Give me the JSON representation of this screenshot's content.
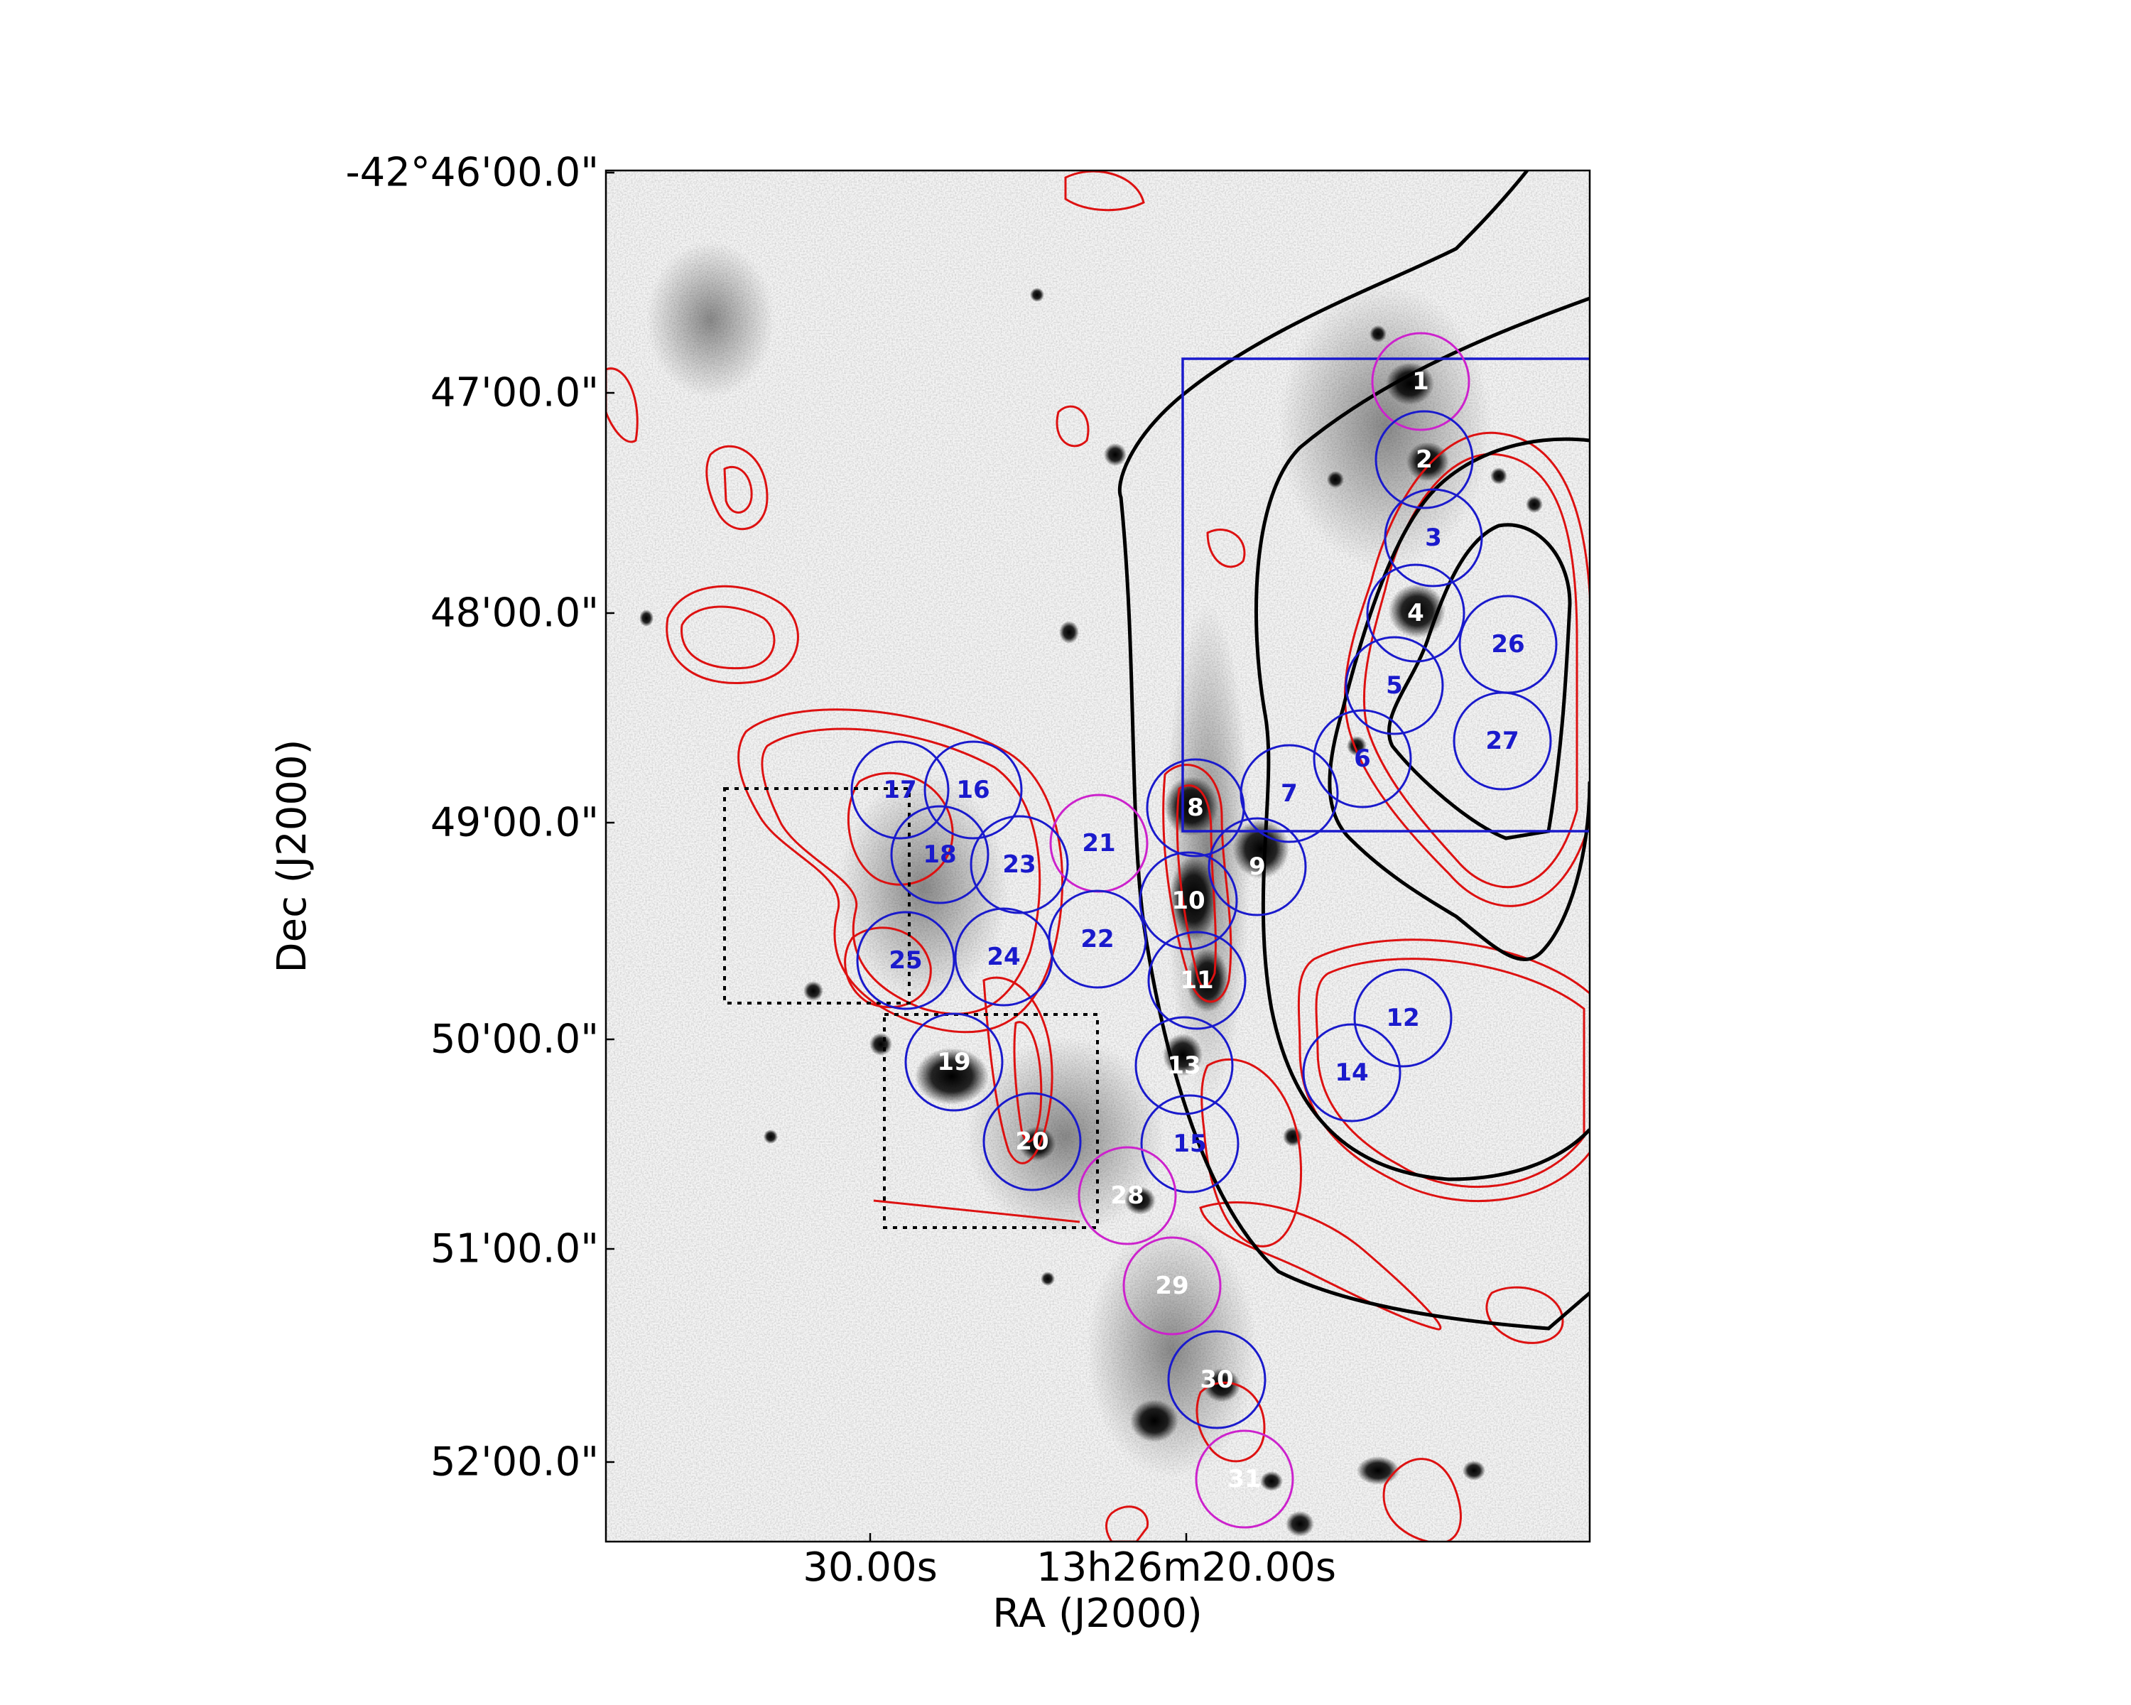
{
  "axes": {
    "xlabel": "RA (J2000)",
    "ylabel": "Dec (J2000)",
    "xticks": [
      "30.00s",
      "13h26m20.00s"
    ],
    "yticks": [
      "-42°46'00.0\"",
      "47'00.0\"",
      "48'00.0\"",
      "49'00.0\"",
      "50'00.0\"",
      "51'00.0\"",
      "52'00.0\""
    ]
  },
  "colors": {
    "blue_region": "#1a1acc",
    "magenta_region": "#cc22cc",
    "red_contour": "#dd1111",
    "black_contour": "#000000",
    "label_on_dark": "#ffffff"
  },
  "regions": [
    {
      "id": "1",
      "color": "magenta",
      "label_color": "white"
    },
    {
      "id": "2",
      "color": "blue",
      "label_color": "white"
    },
    {
      "id": "3",
      "color": "blue",
      "label_color": "blue"
    },
    {
      "id": "4",
      "color": "blue",
      "label_color": "white"
    },
    {
      "id": "5",
      "color": "blue",
      "label_color": "blue"
    },
    {
      "id": "6",
      "color": "blue",
      "label_color": "blue"
    },
    {
      "id": "7",
      "color": "blue",
      "label_color": "blue"
    },
    {
      "id": "8",
      "color": "blue",
      "label_color": "white"
    },
    {
      "id": "9",
      "color": "blue",
      "label_color": "white"
    },
    {
      "id": "10",
      "color": "blue",
      "label_color": "white"
    },
    {
      "id": "11",
      "color": "blue",
      "label_color": "white"
    },
    {
      "id": "12",
      "color": "blue",
      "label_color": "blue"
    },
    {
      "id": "13",
      "color": "blue",
      "label_color": "white"
    },
    {
      "id": "14",
      "color": "blue",
      "label_color": "blue"
    },
    {
      "id": "15",
      "color": "blue",
      "label_color": "blue"
    },
    {
      "id": "16",
      "color": "blue",
      "label_color": "blue"
    },
    {
      "id": "17",
      "color": "blue",
      "label_color": "blue"
    },
    {
      "id": "18",
      "color": "blue",
      "label_color": "blue"
    },
    {
      "id": "19",
      "color": "blue",
      "label_color": "white"
    },
    {
      "id": "20",
      "color": "blue",
      "label_color": "white"
    },
    {
      "id": "21",
      "color": "magenta",
      "label_color": "blue"
    },
    {
      "id": "22",
      "color": "blue",
      "label_color": "blue"
    },
    {
      "id": "23",
      "color": "blue",
      "label_color": "blue"
    },
    {
      "id": "24",
      "color": "blue",
      "label_color": "blue"
    },
    {
      "id": "25",
      "color": "blue",
      "label_color": "blue"
    },
    {
      "id": "26",
      "color": "blue",
      "label_color": "blue"
    },
    {
      "id": "27",
      "color": "blue",
      "label_color": "blue"
    },
    {
      "id": "28",
      "color": "magenta",
      "label_color": "white"
    },
    {
      "id": "29",
      "color": "magenta",
      "label_color": "white"
    },
    {
      "id": "30",
      "color": "blue",
      "label_color": "white"
    },
    {
      "id": "31",
      "color": "magenta",
      "label_color": "white"
    }
  ]
}
